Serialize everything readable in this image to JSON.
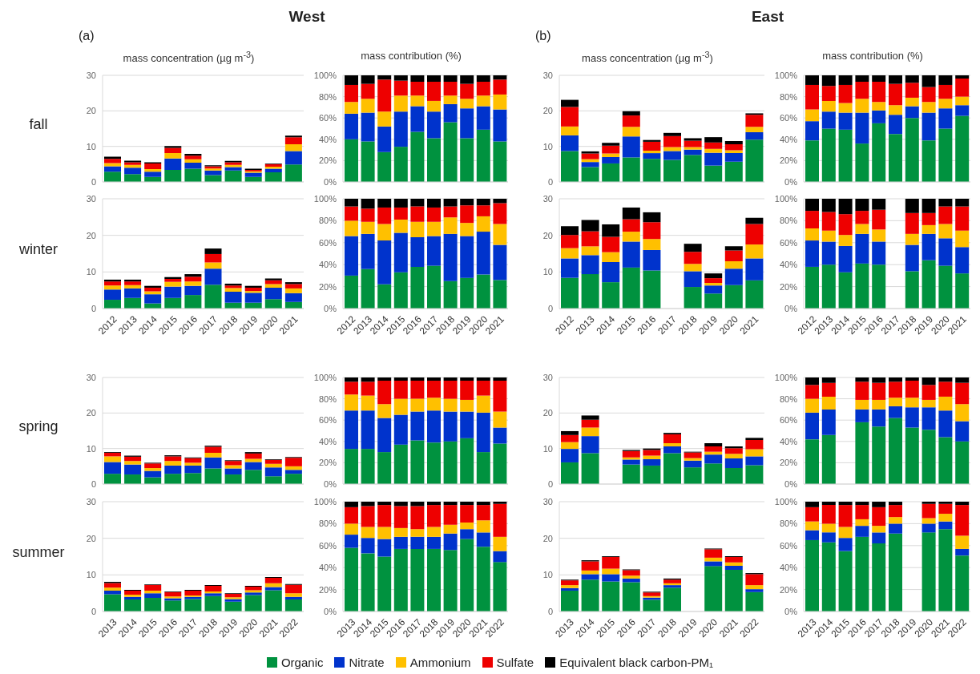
{
  "chart_data": [
    {
      "type": "bar",
      "stacked": true,
      "legend": "bottom",
      "title": "mass concentration (µg m$^{-3}$)",
      "ylabel": "fall",
      "annotations": [
        "(a)",
        "West"
      ],
      "categories": [
        "2012",
        "2013",
        "2014",
        "2015",
        "2016",
        "2017",
        "2018",
        "2019",
        "2020",
        "2021"
      ],
      "ylim": [
        0,
        30
      ],
      "yticks": [
        0,
        10,
        20,
        30
      ],
      "grid": "y",
      "tick_labels": "y",
      "series": [
        {
          "name": "Organic",
          "color": "#00923f",
          "values": [
            2.9,
            2.2,
            1.4,
            3.4,
            3.7,
            1.9,
            3.2,
            1.4,
            2.7,
            4.9
          ]
        },
        {
          "name": "Nitrate",
          "color": "#0033cc",
          "values": [
            1.5,
            1.8,
            1.5,
            3.2,
            1.7,
            1.3,
            1.0,
            1.2,
            1.0,
            3.8
          ]
        },
        {
          "name": "Ammonium",
          "color": "#ffc000",
          "values": [
            0.9,
            0.8,
            0.7,
            1.5,
            1.0,
            0.6,
            0.6,
            0.4,
            0.6,
            1.9
          ]
        },
        {
          "name": "Sulfate",
          "color": "#ee0000",
          "values": [
            1.2,
            0.7,
            1.6,
            1.5,
            1.0,
            0.6,
            0.7,
            0.4,
            0.7,
            2.0
          ]
        },
        {
          "name": "Equivalent black carbon-PM₁",
          "color": "#000000",
          "values": [
            0.6,
            0.5,
            0.3,
            0.5,
            0.5,
            0.3,
            0.4,
            0.3,
            0.2,
            0.4
          ]
        }
      ]
    },
    {
      "type": "bar",
      "stacked": true,
      "title": "mass contribution (%)",
      "categories": [
        "2012",
        "2013",
        "2014",
        "2015",
        "2016",
        "2017",
        "2018",
        "2019",
        "2020",
        "2021"
      ],
      "ylim": [
        0,
        100
      ],
      "yticks": [
        {
          "value": 0,
          "label": "0%"
        },
        {
          "value": 20,
          "label": "20%"
        },
        {
          "value": 40,
          "label": "40%"
        },
        {
          "value": 60,
          "label": "60%"
        },
        {
          "value": 80,
          "label": "80%"
        },
        {
          "value": 100,
          "label": "100%"
        }
      ],
      "grid": "y",
      "tick_labels": "y",
      "series": [
        {
          "color": "#00923f",
          "values": [
            40,
            38,
            28,
            33,
            47,
            41,
            56,
            41,
            49,
            38
          ]
        },
        {
          "color": "#0033cc",
          "values": [
            24,
            27,
            24,
            33,
            24,
            25,
            17,
            28,
            22,
            30
          ]
        },
        {
          "color": "#ffc000",
          "values": [
            11,
            13,
            14,
            15,
            10,
            10,
            8,
            9,
            10,
            14
          ]
        },
        {
          "color": "#ee0000",
          "values": [
            16,
            14,
            30,
            14,
            13,
            18,
            13,
            14,
            13,
            14
          ]
        },
        {
          "color": "#000000",
          "values": [
            9,
            8,
            4,
            5,
            6,
            6,
            6,
            8,
            6,
            4
          ]
        }
      ]
    },
    {
      "type": "bar",
      "stacked": true,
      "title": "mass concentration (µg m$^{-3}$)",
      "annotations": [
        "(b)",
        "East"
      ],
      "categories": [
        "2012",
        "2013",
        "2014",
        "2015",
        "2016",
        "2017",
        "2018",
        "2019",
        "2020",
        "2021"
      ],
      "ylim": [
        0,
        30
      ],
      "yticks": [
        0,
        10,
        20,
        30
      ],
      "grid": "y",
      "tick_labels": "y",
      "series": [
        {
          "color": "#00923f",
          "values": [
            8.7,
            4.2,
            5.2,
            6.9,
            6.5,
            6.2,
            7.6,
            4.6,
            5.7,
            11.9
          ]
        },
        {
          "color": "#0033cc",
          "values": [
            4.4,
            1.4,
            1.8,
            5.9,
            1.6,
            2.5,
            1.5,
            3.6,
            2.4,
            2.1
          ]
        },
        {
          "color": "#ffc000",
          "values": [
            2.5,
            0.8,
            1.0,
            2.7,
            0.7,
            1.1,
            0.7,
            1.1,
            0.8,
            1.5
          ]
        },
        {
          "color": "#ee0000",
          "values": [
            5.5,
            1.6,
            2.2,
            3.2,
            2.5,
            3.1,
            1.8,
            1.8,
            1.7,
            3.4
          ]
        },
        {
          "color": "#000000",
          "values": [
            2.0,
            0.6,
            0.8,
            1.2,
            0.5,
            0.9,
            0.7,
            1.5,
            0.9,
            0.4
          ]
        }
      ]
    },
    {
      "type": "bar",
      "stacked": true,
      "title": "mass contribution (%)",
      "categories": [
        "2012",
        "2013",
        "2014",
        "2015",
        "2016",
        "2017",
        "2018",
        "2019",
        "2020",
        "2021"
      ],
      "ylim": [
        0,
        100
      ],
      "yticks": [
        {
          "value": 0,
          "label": "0%"
        },
        {
          "value": 20,
          "label": "20%"
        },
        {
          "value": 40,
          "label": "40%"
        },
        {
          "value": 60,
          "label": "60%"
        },
        {
          "value": 80,
          "label": "80%"
        },
        {
          "value": 100,
          "label": "100%"
        }
      ],
      "grid": "y",
      "tick_labels": "y",
      "series": [
        {
          "color": "#00923f",
          "values": [
            39,
            50,
            49,
            36,
            55,
            45,
            60,
            39,
            50,
            62
          ]
        },
        {
          "color": "#0033cc",
          "values": [
            18,
            16,
            16,
            29,
            12,
            18,
            11,
            26,
            19,
            10
          ]
        },
        {
          "color": "#ffc000",
          "values": [
            11,
            10,
            9,
            13,
            8,
            9,
            8,
            10,
            9,
            8
          ]
        },
        {
          "color": "#ee0000",
          "values": [
            23,
            14,
            17,
            16,
            19,
            20,
            14,
            14,
            13,
            17
          ]
        },
        {
          "color": "#000000",
          "values": [
            9,
            10,
            9,
            6,
            6,
            8,
            7,
            11,
            9,
            3
          ]
        }
      ]
    },
    {
      "type": "bar",
      "stacked": true,
      "ylabel": "winter",
      "categories": [
        "2012",
        "2013",
        "2014",
        "2015",
        "2016",
        "2017",
        "2018",
        "2019",
        "2020",
        "2021"
      ],
      "ylim": [
        0,
        30
      ],
      "yticks": [
        0,
        10,
        20,
        30
      ],
      "grid": "y",
      "series": [
        {
          "color": "#00923f",
          "values": [
            2.4,
            2.9,
            1.4,
            2.9,
            3.7,
            6.5,
            1.6,
            1.6,
            2.6,
            1.8
          ]
        },
        {
          "color": "#0033cc",
          "values": [
            2.8,
            2.6,
            2.5,
            3.1,
            2.5,
            4.4,
            3.0,
            2.7,
            3.1,
            2.4
          ]
        },
        {
          "color": "#ffc000",
          "values": [
            1.1,
            0.9,
            0.8,
            1.3,
            1.2,
            1.7,
            1.0,
            0.5,
            1.0,
            1.3
          ]
        },
        {
          "color": "#ee0000",
          "values": [
            1.1,
            1.0,
            1.0,
            0.8,
            1.3,
            2.3,
            0.7,
            0.9,
            1.0,
            1.2
          ]
        },
        {
          "color": "#000000",
          "values": [
            0.5,
            0.5,
            0.5,
            0.5,
            0.7,
            1.5,
            0.5,
            0.5,
            0.5,
            0.5
          ]
        }
      ]
    },
    {
      "type": "bar",
      "stacked": true,
      "categories": [
        "2012",
        "2013",
        "2014",
        "2015",
        "2016",
        "2017",
        "2018",
        "2019",
        "2020",
        "2021"
      ],
      "ylim": [
        0,
        100
      ],
      "yticks": [
        {
          "value": 0,
          "label": "0%"
        },
        {
          "value": 20,
          "label": "20%"
        },
        {
          "value": 40,
          "label": "40%"
        },
        {
          "value": 60,
          "label": "60%"
        },
        {
          "value": 80,
          "label": "80%"
        },
        {
          "value": 100,
          "label": "100%"
        }
      ],
      "grid": "y",
      "series": [
        {
          "color": "#00923f",
          "values": [
            30,
            36,
            22,
            33,
            38,
            39,
            25,
            28,
            31,
            26
          ]
        },
        {
          "color": "#0033cc",
          "values": [
            36,
            32,
            40,
            36,
            27,
            27,
            43,
            38,
            39,
            32
          ]
        },
        {
          "color": "#ffc000",
          "values": [
            14,
            11,
            15,
            12,
            14,
            13,
            15,
            12,
            14,
            19
          ]
        },
        {
          "color": "#ee0000",
          "values": [
            13,
            12,
            15,
            11,
            14,
            13,
            10,
            16,
            10,
            19
          ]
        },
        {
          "color": "#000000",
          "values": [
            7,
            9,
            8,
            8,
            7,
            8,
            7,
            6,
            6,
            4
          ]
        }
      ]
    },
    {
      "type": "bar",
      "stacked": true,
      "categories": [
        "2012",
        "2013",
        "2014",
        "2015",
        "2016",
        "2017",
        "2018",
        "2019",
        "2020",
        "2021"
      ],
      "ylim": [
        0,
        30
      ],
      "yticks": [
        0,
        10,
        20,
        30
      ],
      "grid": "y",
      "series": [
        {
          "color": "#00923f",
          "values": [
            8.4,
            9.4,
            7.2,
            11.2,
            10.4,
            null,
            5.9,
            4.1,
            6.4,
            7.7
          ]
        },
        {
          "color": "#0033cc",
          "values": [
            5.3,
            5.2,
            5.5,
            7.1,
            5.6,
            null,
            4.3,
            2.2,
            4.5,
            6.0
          ]
        },
        {
          "color": "#ffc000",
          "values": [
            2.8,
            2.4,
            2.7,
            2.7,
            3.0,
            null,
            2.0,
            0.7,
            2.0,
            3.8
          ]
        },
        {
          "color": "#ee0000",
          "values": [
            3.6,
            4.1,
            4.2,
            3.4,
            4.6,
            null,
            3.3,
            1.3,
            3.0,
            5.6
          ]
        },
        {
          "color": "#000000",
          "values": [
            2.4,
            3.1,
            3.4,
            3.2,
            2.7,
            null,
            2.2,
            1.3,
            1.1,
            1.7
          ]
        }
      ]
    },
    {
      "type": "bar",
      "stacked": true,
      "categories": [
        "2012",
        "2013",
        "2014",
        "2015",
        "2016",
        "2017",
        "2018",
        "2019",
        "2020",
        "2021"
      ],
      "ylim": [
        0,
        100
      ],
      "yticks": [
        {
          "value": 0,
          "label": "0%"
        },
        {
          "value": 20,
          "label": "20%"
        },
        {
          "value": 40,
          "label": "40%"
        },
        {
          "value": 60,
          "label": "60%"
        },
        {
          "value": 80,
          "label": "80%"
        },
        {
          "value": 100,
          "label": "100%"
        }
      ],
      "grid": "y",
      "series": [
        {
          "color": "#00923f",
          "values": [
            38,
            40,
            33,
            41,
            40,
            null,
            34,
            44,
            39,
            32
          ]
        },
        {
          "color": "#0033cc",
          "values": [
            24,
            21,
            24,
            27,
            21,
            null,
            24,
            24,
            25,
            24
          ]
        },
        {
          "color": "#ffc000",
          "values": [
            11,
            10,
            10,
            9,
            11,
            null,
            10,
            8,
            13,
            15
          ]
        },
        {
          "color": "#ee0000",
          "values": [
            16,
            17,
            19,
            12,
            18,
            null,
            19,
            11,
            16,
            22
          ]
        },
        {
          "color": "#000000",
          "values": [
            11,
            12,
            14,
            11,
            10,
            null,
            13,
            13,
            7,
            7
          ]
        }
      ]
    },
    {
      "type": "bar",
      "stacked": true,
      "ylabel": "spring",
      "categories": [
        "2012",
        "2013",
        "2014",
        "2015",
        "2016",
        "2017",
        "2018",
        "2019",
        "2020",
        "2021"
      ],
      "ylim": [
        0,
        30
      ],
      "yticks": [
        0,
        10,
        20,
        30
      ],
      "grid": "y",
      "tick_labels": "y",
      "series": [
        {
          "color": "#00923f",
          "values": [
            2.9,
            2.7,
            1.9,
            2.9,
            3.1,
            4.4,
            2.7,
            4.0,
            2.2,
            2.9
          ]
        },
        {
          "color": "#0033cc",
          "values": [
            3.3,
            2.8,
            1.8,
            2.3,
            2.1,
            3.1,
            1.7,
            2.2,
            2.5,
            1.1
          ]
        },
        {
          "color": "#ffc000",
          "values": [
            1.6,
            1.0,
            0.8,
            1.3,
            0.8,
            1.3,
            0.9,
            0.9,
            1.0,
            1.0
          ]
        },
        {
          "color": "#ee0000",
          "values": [
            1.0,
            1.2,
            1.3,
            1.3,
            1.3,
            1.7,
            1.2,
            1.5,
            1.1,
            2.4
          ]
        },
        {
          "color": "#000000",
          "values": [
            0.2,
            0.3,
            0.2,
            0.3,
            0.2,
            0.3,
            0.2,
            0.4,
            0.2,
            0.2
          ]
        }
      ]
    },
    {
      "type": "bar",
      "stacked": true,
      "categories": [
        "2012",
        "2013",
        "2014",
        "2015",
        "2016",
        "2017",
        "2018",
        "2019",
        "2020",
        "2021"
      ],
      "ylim": [
        0,
        100
      ],
      "yticks": [
        {
          "value": 0,
          "label": "0%"
        },
        {
          "value": 20,
          "label": "20%"
        },
        {
          "value": 40,
          "label": "40%"
        },
        {
          "value": 60,
          "label": "60%"
        },
        {
          "value": 80,
          "label": "80%"
        },
        {
          "value": 100,
          "label": "100%"
        }
      ],
      "grid": "y",
      "tick_labels": "y",
      "series": [
        {
          "color": "#00923f",
          "values": [
            33,
            33,
            30,
            37,
            41,
            39,
            40,
            43,
            30,
            38
          ]
        },
        {
          "color": "#0033cc",
          "values": [
            36,
            36,
            32,
            28,
            27,
            30,
            28,
            25,
            37,
            15
          ]
        },
        {
          "color": "#ffc000",
          "values": [
            15,
            14,
            13,
            15,
            12,
            12,
            12,
            11,
            16,
            15
          ]
        },
        {
          "color": "#ee0000",
          "values": [
            12,
            13,
            22,
            17,
            17,
            16,
            17,
            18,
            14,
            29
          ]
        },
        {
          "color": "#000000",
          "values": [
            4,
            4,
            3,
            3,
            3,
            3,
            3,
            3,
            3,
            3
          ]
        }
      ]
    },
    {
      "type": "bar",
      "stacked": true,
      "categories": [
        "2012",
        "2013",
        "2014",
        "2015",
        "2016",
        "2017",
        "2018",
        "2019",
        "2020",
        "2021"
      ],
      "ylim": [
        0,
        30
      ],
      "yticks": [
        0,
        10,
        20,
        30
      ],
      "grid": "y",
      "tick_labels": "y",
      "series": [
        {
          "color": "#00923f",
          "values": [
            6.1,
            8.7,
            null,
            5.5,
            5.2,
            8.7,
            4.7,
            5.8,
            4.5,
            5.3
          ]
        },
        {
          "color": "#0033cc",
          "values": [
            3.8,
            4.8,
            null,
            1.4,
            1.8,
            1.9,
            1.9,
            2.5,
            2.7,
            2.5
          ]
        },
        {
          "color": "#ffc000",
          "values": [
            1.9,
            2.4,
            null,
            0.6,
            1.0,
            0.9,
            0.7,
            0.8,
            1.3,
            2.0
          ]
        },
        {
          "color": "#ee0000",
          "values": [
            2.0,
            2.2,
            null,
            1.8,
            1.6,
            2.5,
            1.6,
            1.5,
            1.6,
            2.6
          ]
        },
        {
          "color": "#000000",
          "values": [
            1.1,
            1.2,
            null,
            0.3,
            0.4,
            0.4,
            0.2,
            0.9,
            0.5,
            0.6
          ]
        }
      ]
    },
    {
      "type": "bar",
      "stacked": true,
      "categories": [
        "2012",
        "2013",
        "2014",
        "2015",
        "2016",
        "2017",
        "2018",
        "2019",
        "2020",
        "2021"
      ],
      "ylim": [
        0,
        100
      ],
      "yticks": [
        {
          "value": 0,
          "label": "0%"
        },
        {
          "value": 20,
          "label": "20%"
        },
        {
          "value": 40,
          "label": "40%"
        },
        {
          "value": 60,
          "label": "60%"
        },
        {
          "value": 80,
          "label": "80%"
        },
        {
          "value": 100,
          "label": "100%"
        }
      ],
      "grid": "y",
      "tick_labels": "y",
      "series": [
        {
          "color": "#00923f",
          "values": [
            42,
            46,
            null,
            58,
            54,
            62,
            53,
            51,
            44,
            40
          ]
        },
        {
          "color": "#0033cc",
          "values": [
            25,
            24,
            null,
            12,
            16,
            11,
            19,
            21,
            25,
            19
          ]
        },
        {
          "color": "#ffc000",
          "values": [
            13,
            12,
            null,
            9,
            9,
            8,
            9,
            7,
            13,
            16
          ]
        },
        {
          "color": "#ee0000",
          "values": [
            13,
            13,
            null,
            17,
            16,
            15,
            16,
            14,
            14,
            20
          ]
        },
        {
          "color": "#000000",
          "values": [
            7,
            5,
            null,
            4,
            5,
            4,
            3,
            7,
            4,
            5
          ]
        }
      ]
    },
    {
      "type": "bar",
      "stacked": true,
      "ylabel": "summer",
      "categories": [
        "2013",
        "2014",
        "2015",
        "2016",
        "2017",
        "2018",
        "2019",
        "2020",
        "2021",
        "2022"
      ],
      "ylim": [
        0,
        30
      ],
      "yticks": [
        0,
        10,
        20,
        30
      ],
      "grid": "y",
      "series": [
        {
          "color": "#00923f",
          "values": [
            4.7,
            3.3,
            3.7,
            3.0,
            3.4,
            4.2,
            2.7,
            4.5,
            5.8,
            3.3
          ]
        },
        {
          "color": "#0033cc",
          "values": [
            1.0,
            0.7,
            1.3,
            0.6,
            0.6,
            0.8,
            0.7,
            0.7,
            0.9,
            0.7
          ]
        },
        {
          "color": "#ffc000",
          "values": [
            0.8,
            0.6,
            0.7,
            0.5,
            0.4,
            0.5,
            0.5,
            0.6,
            1.0,
            1.0
          ]
        },
        {
          "color": "#ee0000",
          "values": [
            1.3,
            1.1,
            1.5,
            1.2,
            1.3,
            1.5,
            0.9,
            1.0,
            1.5,
            2.3
          ]
        },
        {
          "color": "#000000",
          "values": [
            0.3,
            0.2,
            0.2,
            0.2,
            0.2,
            0.2,
            0.2,
            0.2,
            0.2,
            0.2
          ]
        }
      ]
    },
    {
      "type": "bar",
      "stacked": true,
      "categories": [
        "2013",
        "2014",
        "2015",
        "2016",
        "2017",
        "2018",
        "2019",
        "2020",
        "2021",
        "2022"
      ],
      "ylim": [
        0,
        100
      ],
      "yticks": [
        {
          "value": 0,
          "label": "0%"
        },
        {
          "value": 20,
          "label": "20%"
        },
        {
          "value": 40,
          "label": "40%"
        },
        {
          "value": 60,
          "label": "60%"
        },
        {
          "value": 80,
          "label": "80%"
        },
        {
          "value": 100,
          "label": "100%"
        }
      ],
      "grid": "y",
      "series": [
        {
          "color": "#00923f",
          "values": [
            58,
            53,
            50,
            57,
            57,
            57,
            56,
            66,
            59,
            45
          ]
        },
        {
          "color": "#0033cc",
          "values": [
            12,
            14,
            16,
            11,
            11,
            11,
            15,
            9,
            13,
            10
          ]
        },
        {
          "color": "#ffc000",
          "values": [
            10,
            10,
            11,
            8,
            7,
            9,
            8,
            6,
            11,
            13
          ]
        },
        {
          "color": "#ee0000",
          "values": [
            15,
            19,
            20,
            20,
            21,
            20,
            18,
            16,
            14,
            30
          ]
        },
        {
          "color": "#000000",
          "values": [
            5,
            4,
            3,
            4,
            4,
            3,
            3,
            3,
            3,
            2
          ]
        }
      ]
    },
    {
      "type": "bar",
      "stacked": true,
      "categories": [
        "2013",
        "2014",
        "2015",
        "2016",
        "2017",
        "2018",
        "2019",
        "2020",
        "2021",
        "2022"
      ],
      "ylim": [
        0,
        30
      ],
      "yticks": [
        0,
        10,
        20,
        30
      ],
      "grid": "y",
      "series": [
        {
          "color": "#00923f",
          "values": [
            5.7,
            8.7,
            8.2,
            8.0,
            3.2,
            6.5,
            null,
            12.4,
            11.4,
            5.3
          ]
        },
        {
          "color": "#0033cc",
          "values": [
            0.7,
            1.5,
            2.0,
            1.0,
            0.6,
            0.7,
            null,
            1.3,
            1.1,
            0.8
          ]
        },
        {
          "color": "#ffc000",
          "values": [
            0.8,
            1.0,
            1.5,
            0.8,
            0.4,
            0.5,
            null,
            1.0,
            0.9,
            1.1
          ]
        },
        {
          "color": "#ee0000",
          "values": [
            1.3,
            2.5,
            3.2,
            1.5,
            1.0,
            1.0,
            null,
            2.3,
            1.5,
            3.0
          ]
        },
        {
          "color": "#000000",
          "values": [
            0.2,
            0.3,
            0.2,
            0.2,
            0.2,
            0.3,
            null,
            0.2,
            0.2,
            0.3
          ]
        }
      ]
    },
    {
      "type": "bar",
      "stacked": true,
      "categories": [
        "2013",
        "2014",
        "2015",
        "2016",
        "2017",
        "2018",
        "2019",
        "2020",
        "2021",
        "2022"
      ],
      "ylim": [
        0,
        100
      ],
      "yticks": [
        {
          "value": 0,
          "label": "0%"
        },
        {
          "value": 20,
          "label": "20%"
        },
        {
          "value": 40,
          "label": "40%"
        },
        {
          "value": 60,
          "label": "60%"
        },
        {
          "value": 80,
          "label": "80%"
        },
        {
          "value": 100,
          "label": "100%"
        }
      ],
      "grid": "y",
      "series": [
        {
          "color": "#00923f",
          "values": [
            65,
            63,
            55,
            68,
            62,
            71,
            null,
            72,
            75,
            51
          ]
        },
        {
          "color": "#0033cc",
          "values": [
            9,
            9,
            12,
            10,
            10,
            9,
            null,
            8,
            7,
            6
          ]
        },
        {
          "color": "#ffc000",
          "values": [
            8,
            8,
            10,
            6,
            6,
            6,
            null,
            5,
            7,
            12
          ]
        },
        {
          "color": "#ee0000",
          "values": [
            13,
            17,
            20,
            13,
            17,
            11,
            null,
            13,
            9,
            28
          ]
        },
        {
          "color": "#000000",
          "values": [
            5,
            3,
            3,
            3,
            5,
            3,
            null,
            2,
            2,
            3
          ]
        }
      ]
    }
  ]
}
